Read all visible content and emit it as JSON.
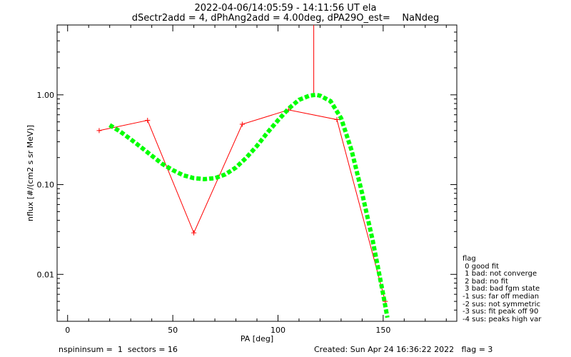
{
  "header": {
    "line1": "2022-04-06/14:05:59 - 14:11:56 UT ela",
    "line2": "dSectr2add = 4, dPhAng2add = 4.00deg, dPA29O_est=    NaNdeg"
  },
  "footer": {
    "left": "nspininsum =  1  sectors = 16",
    "right": "Created: Sun Apr 24 16:36:22 2022   flag = 3"
  },
  "flag_legend": {
    "title": "flag",
    "items": [
      " 0 good fit",
      " 1 bad: not converge",
      " 2 bad: no fit",
      " 3 bad: bad fgm state",
      "-1 sus: far off median",
      "-2 sus: not symmetric",
      "-3 sus: fit peak off 90",
      "-4 sus: peaks high var"
    ]
  },
  "colors": {
    "data_line": "#ff0000",
    "fit_line": "#00ff00",
    "axes": "#000000"
  },
  "chart_data": {
    "type": "line",
    "xlabel": "PA [deg]",
    "ylabel": "nflux [#/(cm2 s sr MeV)]",
    "xlim": [
      -5,
      185
    ],
    "ylim": [
      0.003,
      6
    ],
    "yscale": "log",
    "xticks": [
      0,
      50,
      100,
      150
    ],
    "xtick_labels": [
      "0",
      "50",
      "100",
      "150"
    ],
    "yticks": [
      0.01,
      0.1,
      1.0
    ],
    "ytick_labels": [
      "0.01",
      "0.10",
      "1.00"
    ],
    "series": [
      {
        "style": "line+plus-markers",
        "color": "#ff0000",
        "x": [
          15,
          38,
          60,
          83,
          105,
          128,
          151
        ],
        "y": [
          0.4,
          0.52,
          0.029,
          0.47,
          0.68,
          0.53,
          0.005
        ]
      },
      {
        "style": "thick-dashed",
        "color": "#00ff00",
        "x": [
          20,
          25,
          30,
          35,
          40,
          45,
          50,
          55,
          60,
          65,
          70,
          75,
          80,
          85,
          90,
          95,
          100,
          105,
          110,
          115,
          118,
          120,
          125,
          130,
          135,
          140,
          145,
          150,
          152
        ],
        "y": [
          0.46,
          0.39,
          0.32,
          0.26,
          0.21,
          0.17,
          0.145,
          0.127,
          0.118,
          0.115,
          0.118,
          0.13,
          0.155,
          0.2,
          0.27,
          0.38,
          0.52,
          0.7,
          0.88,
          0.98,
          1.0,
          0.98,
          0.85,
          0.55,
          0.24,
          0.08,
          0.024,
          0.006,
          0.0033
        ]
      }
    ],
    "annotations": [
      {
        "type": "vertical-spike",
        "color": "#ff0000",
        "x": 117,
        "y_from": 1.05,
        "y_to": 6
      }
    ]
  }
}
